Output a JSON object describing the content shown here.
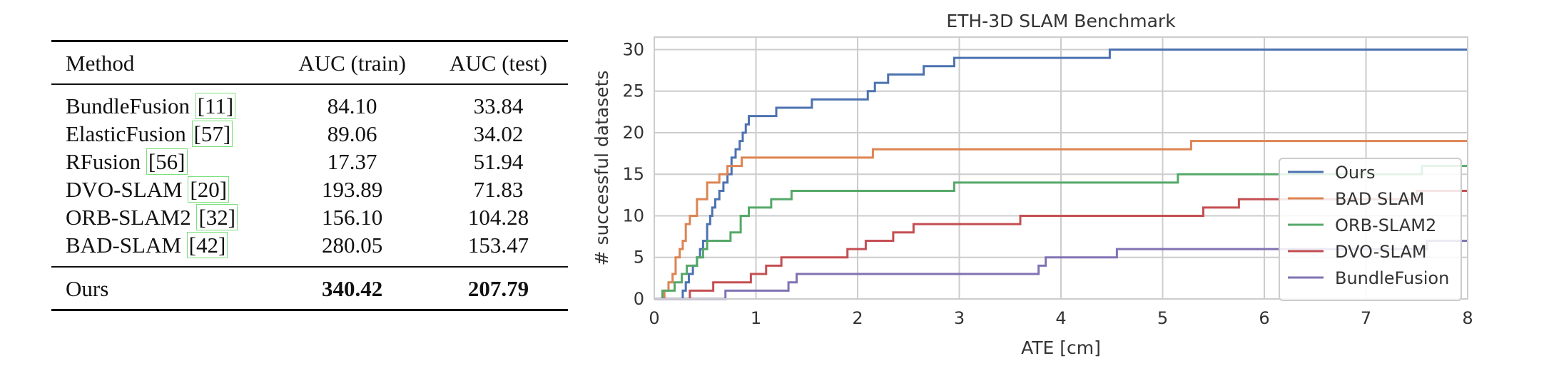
{
  "table": {
    "headers": [
      "Method",
      "AUC (train)",
      "AUC (test)"
    ],
    "rows": [
      {
        "method": "BundleFusion",
        "cite": "[11]",
        "train": "84.10",
        "test": "33.84"
      },
      {
        "method": "ElasticFusion",
        "cite": "[57]",
        "train": "89.06",
        "test": "34.02"
      },
      {
        "method": "RFusion",
        "cite": "[56]",
        "train": "17.37",
        "test": "51.94"
      },
      {
        "method": "DVO-SLAM",
        "cite": "[20]",
        "train": "193.89",
        "test": "71.83"
      },
      {
        "method": "ORB-SLAM2",
        "cite": "[32]",
        "train": "156.10",
        "test": "104.28"
      },
      {
        "method": "BAD-SLAM",
        "cite": "[42]",
        "train": "280.05",
        "test": "153.47"
      }
    ],
    "ours": {
      "method": "Ours",
      "train": "340.42",
      "test": "207.79"
    }
  },
  "chart_data": {
    "type": "line",
    "step": true,
    "title": "ETH-3D SLAM Benchmark",
    "xlabel": "ATE [cm]",
    "ylabel": "# successful datasets",
    "xlim": [
      0,
      8
    ],
    "ylim": [
      0,
      31.5
    ],
    "xticks": [
      0,
      1,
      2,
      3,
      4,
      5,
      6,
      7,
      8
    ],
    "yticks": [
      0,
      5,
      10,
      15,
      20,
      25,
      30
    ],
    "grid": true,
    "legend_position": "center-right",
    "series": [
      {
        "name": "Ours",
        "color": "#4c72b0",
        "points": [
          [
            0,
            0
          ],
          [
            0.28,
            1
          ],
          [
            0.31,
            2
          ],
          [
            0.34,
            3
          ],
          [
            0.38,
            4
          ],
          [
            0.42,
            5
          ],
          [
            0.45,
            6
          ],
          [
            0.48,
            7
          ],
          [
            0.52,
            9
          ],
          [
            0.55,
            10
          ],
          [
            0.57,
            11
          ],
          [
            0.6,
            12
          ],
          [
            0.64,
            13
          ],
          [
            0.68,
            14
          ],
          [
            0.72,
            15
          ],
          [
            0.76,
            17
          ],
          [
            0.8,
            18
          ],
          [
            0.84,
            19
          ],
          [
            0.87,
            20
          ],
          [
            0.9,
            21
          ],
          [
            0.93,
            22
          ],
          [
            1.2,
            23
          ],
          [
            1.55,
            24
          ],
          [
            2.1,
            25
          ],
          [
            2.17,
            26
          ],
          [
            2.3,
            27
          ],
          [
            2.65,
            28
          ],
          [
            2.95,
            29
          ],
          [
            4.48,
            30
          ],
          [
            8,
            30
          ]
        ]
      },
      {
        "name": "BAD SLAM",
        "color": "#dd8452",
        "points": [
          [
            0,
            0
          ],
          [
            0.1,
            1
          ],
          [
            0.14,
            2
          ],
          [
            0.18,
            3
          ],
          [
            0.21,
            5
          ],
          [
            0.25,
            6
          ],
          [
            0.28,
            7
          ],
          [
            0.31,
            9
          ],
          [
            0.35,
            10
          ],
          [
            0.42,
            12
          ],
          [
            0.52,
            14
          ],
          [
            0.64,
            15
          ],
          [
            0.72,
            16
          ],
          [
            0.86,
            17
          ],
          [
            2.15,
            18
          ],
          [
            5.28,
            19
          ],
          [
            8,
            19
          ]
        ]
      },
      {
        "name": "ORB-SLAM2",
        "color": "#55a868",
        "points": [
          [
            0,
            0
          ],
          [
            0.08,
            1
          ],
          [
            0.2,
            2
          ],
          [
            0.27,
            3
          ],
          [
            0.32,
            4
          ],
          [
            0.42,
            5
          ],
          [
            0.48,
            6
          ],
          [
            0.52,
            7
          ],
          [
            0.75,
            8
          ],
          [
            0.85,
            10
          ],
          [
            0.93,
            11
          ],
          [
            1.15,
            12
          ],
          [
            1.35,
            13
          ],
          [
            2.95,
            14
          ],
          [
            5.15,
            15
          ],
          [
            7.55,
            16
          ],
          [
            8,
            16
          ]
        ]
      },
      {
        "name": "DVO-SLAM",
        "color": "#c44e52",
        "points": [
          [
            0,
            0
          ],
          [
            0.35,
            1
          ],
          [
            0.58,
            2
          ],
          [
            0.95,
            3
          ],
          [
            1.1,
            4
          ],
          [
            1.25,
            5
          ],
          [
            1.9,
            6
          ],
          [
            2.08,
            7
          ],
          [
            2.35,
            8
          ],
          [
            2.55,
            9
          ],
          [
            3.6,
            10
          ],
          [
            5.4,
            11
          ],
          [
            5.75,
            12
          ],
          [
            7.5,
            13
          ],
          [
            8,
            13
          ]
        ]
      },
      {
        "name": "BundleFusion",
        "color": "#8172b3",
        "points": [
          [
            0,
            0
          ],
          [
            0.7,
            1
          ],
          [
            1.32,
            2
          ],
          [
            1.4,
            3
          ],
          [
            3.78,
            4
          ],
          [
            3.85,
            5
          ],
          [
            4.55,
            6
          ],
          [
            7.6,
            7
          ],
          [
            8,
            7
          ]
        ]
      }
    ]
  }
}
